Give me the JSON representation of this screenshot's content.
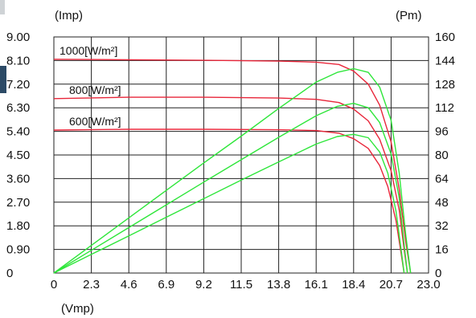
{
  "chart_data": {
    "type": "line",
    "title": "",
    "xlabel": "(Vmp)",
    "ylabel_left": "(Imp)",
    "ylabel_right": "(Pm)",
    "x_ticks": [
      "0",
      "2.3",
      "4.6",
      "6.9",
      "9.2",
      "11.5",
      "13.8",
      "16.1",
      "18.4",
      "20.7",
      "23.0"
    ],
    "y_left_ticks": [
      "0",
      "0.90",
      "1.80",
      "2.70",
      "3.60",
      "4.50",
      "5.40",
      "6.30",
      "7.20",
      "8.10",
      "9.00"
    ],
    "y_right_ticks": [
      "0",
      "16",
      "32",
      "48",
      "64",
      "80",
      "96",
      "112",
      "128",
      "144",
      "160"
    ],
    "xlim": [
      0,
      23.0
    ],
    "ylim_left": [
      0,
      9.0
    ],
    "ylim_right": [
      0,
      160
    ],
    "grid": true,
    "colors": {
      "current": "#e8263a",
      "power": "#2ee63a"
    },
    "series": [
      {
        "irradiance_label": "1000[W/m²]",
        "kind": "current",
        "x": [
          0,
          4.6,
          9.2,
          13.8,
          16.1,
          17.5,
          18.4,
          19.3,
          20.0,
          20.7,
          21.2,
          21.6,
          21.9
        ],
        "y": [
          8.15,
          8.13,
          8.11,
          8.08,
          8.04,
          7.95,
          7.7,
          7.2,
          6.4,
          5.0,
          3.2,
          1.2,
          0
        ]
      },
      {
        "irradiance_label": "800[W/m²]",
        "kind": "current",
        "x": [
          0,
          4.6,
          9.2,
          13.8,
          16.1,
          17.5,
          18.4,
          19.3,
          20.0,
          20.7,
          21.2,
          21.5,
          21.7
        ],
        "y": [
          6.65,
          6.7,
          6.7,
          6.67,
          6.62,
          6.5,
          6.25,
          5.8,
          5.1,
          3.9,
          2.4,
          0.9,
          0
        ]
      },
      {
        "irradiance_label": "600[W/m²]",
        "kind": "current",
        "x": [
          0,
          4.6,
          9.2,
          13.8,
          16.1,
          17.5,
          18.4,
          19.3,
          20.0,
          20.5,
          21.0,
          21.3,
          21.5
        ],
        "y": [
          5.45,
          5.48,
          5.48,
          5.46,
          5.43,
          5.33,
          5.12,
          4.75,
          4.1,
          3.3,
          2.0,
          0.8,
          0
        ]
      },
      {
        "irradiance_label": "1000[W/m²]",
        "kind": "power",
        "x": [
          0,
          2.3,
          4.6,
          6.9,
          9.2,
          11.5,
          13.8,
          16.1,
          17.4,
          18.4,
          19.3,
          20.0,
          20.7,
          21.2,
          21.6,
          21.9
        ],
        "y": [
          0,
          18.7,
          37.4,
          56.0,
          74.6,
          92.8,
          111.5,
          129.4,
          136.0,
          138.5,
          136.0,
          126.0,
          103.5,
          67.8,
          25.9,
          0
        ]
      },
      {
        "irradiance_label": "800[W/m²]",
        "kind": "power",
        "x": [
          0,
          2.3,
          4.6,
          6.9,
          9.2,
          11.5,
          13.8,
          16.1,
          17.4,
          18.4,
          19.3,
          20.0,
          20.7,
          21.2,
          21.5,
          21.7
        ],
        "y": [
          0,
          15.4,
          30.8,
          46.2,
          61.6,
          76.8,
          92.0,
          106.6,
          113.0,
          115.0,
          112.0,
          102.0,
          80.7,
          50.9,
          19.4,
          0
        ]
      },
      {
        "irradiance_label": "600[W/m²]",
        "kind": "power",
        "x": [
          0,
          2.3,
          4.6,
          6.9,
          9.2,
          11.5,
          13.8,
          16.1,
          17.4,
          18.4,
          19.3,
          20.0,
          20.5,
          21.0,
          21.3,
          21.5
        ],
        "y": [
          0,
          12.6,
          25.2,
          37.8,
          50.4,
          63.0,
          75.3,
          87.4,
          92.5,
          94.0,
          91.7,
          82.0,
          67.7,
          42.0,
          17.0,
          0
        ]
      }
    ]
  }
}
